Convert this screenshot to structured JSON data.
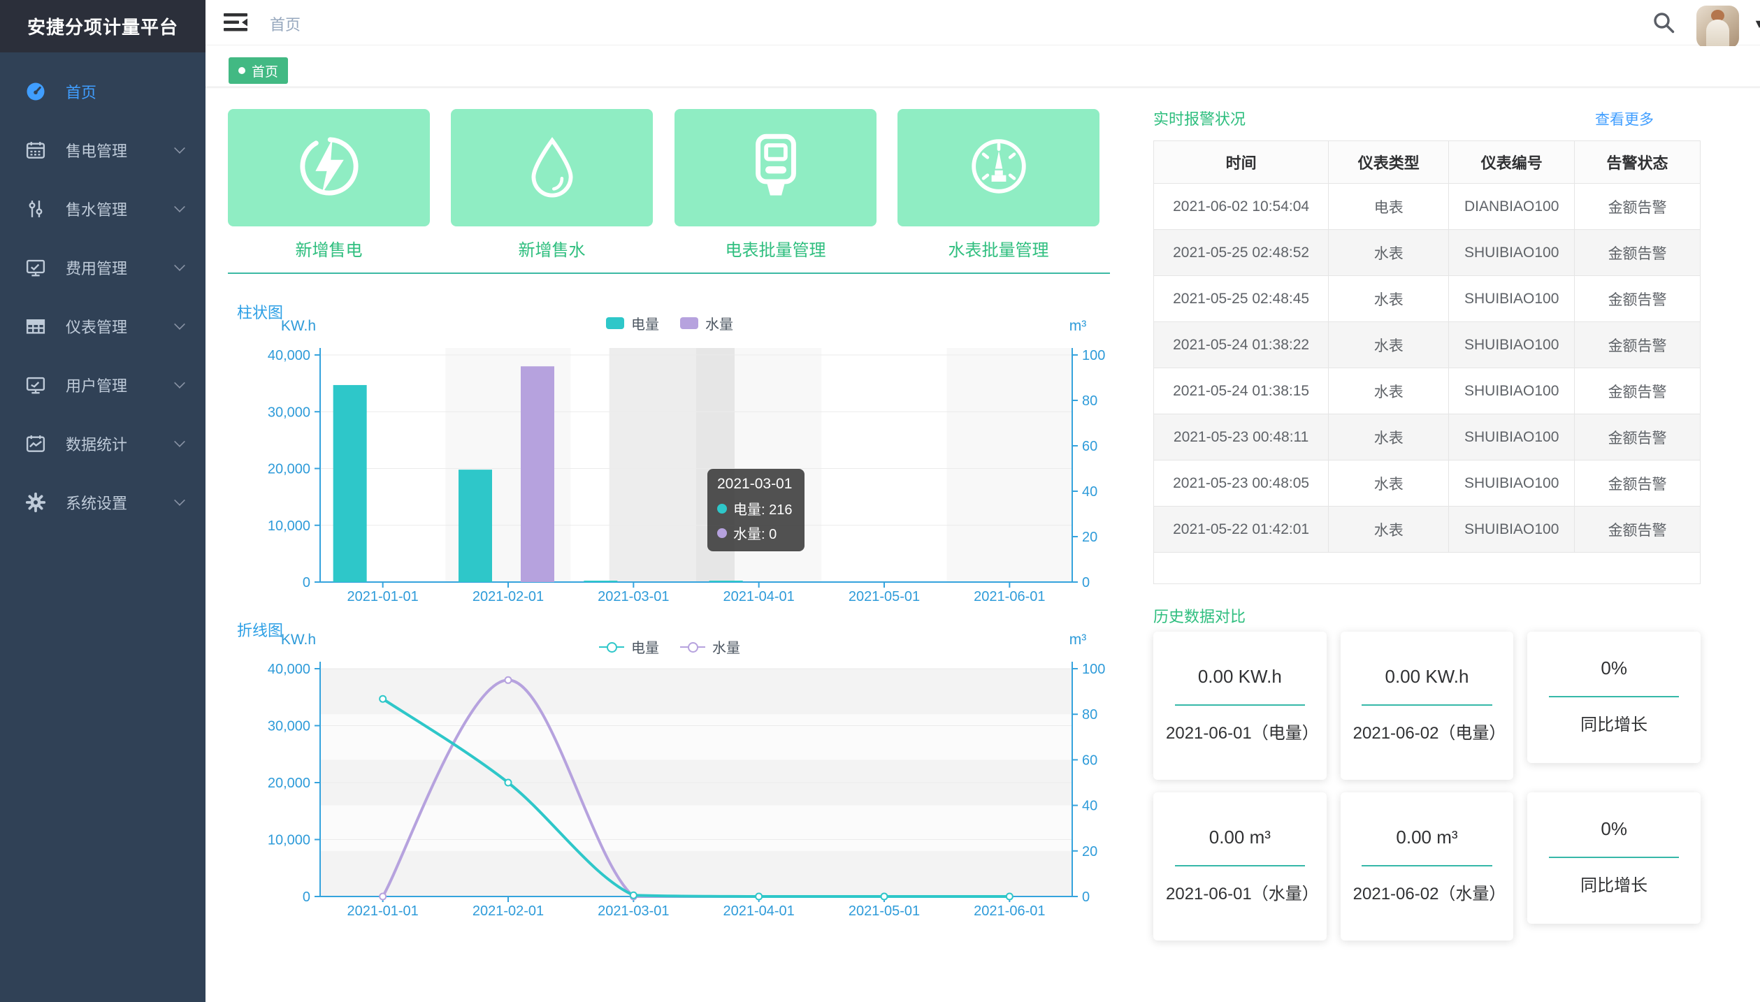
{
  "app_title": "安捷分项计量平台",
  "sidebar": {
    "logo_text": "安捷分项计量平台",
    "items": [
      {
        "label": "首页",
        "icon": "dashboard-icon",
        "active": true,
        "expandable": false
      },
      {
        "label": "售电管理",
        "icon": "electricity-sales-icon",
        "active": false,
        "expandable": true
      },
      {
        "label": "售水管理",
        "icon": "water-sales-icon",
        "active": false,
        "expandable": true
      },
      {
        "label": "费用管理",
        "icon": "fees-icon",
        "active": false,
        "expandable": true
      },
      {
        "label": "仪表管理",
        "icon": "meter-management-icon",
        "active": false,
        "expandable": true
      },
      {
        "label": "用户管理",
        "icon": "user-management-icon",
        "active": false,
        "expandable": true
      },
      {
        "label": "数据统计",
        "icon": "statistics-icon",
        "active": false,
        "expandable": true
      },
      {
        "label": "系统设置",
        "icon": "settings-icon",
        "active": false,
        "expandable": true
      }
    ]
  },
  "navbar": {
    "breadcrumb": "首页"
  },
  "tags": [
    {
      "label": "首页",
      "active": true
    }
  ],
  "quick_actions": [
    {
      "label": "新增售电",
      "icon": "lightning-icon"
    },
    {
      "label": "新增售水",
      "icon": "water-drop-icon"
    },
    {
      "label": "电表批量管理",
      "icon": "electric-meter-icon"
    },
    {
      "label": "水表批量管理",
      "icon": "water-meter-gauge-icon"
    }
  ],
  "colors": {
    "tag_green": "#42b983",
    "mint_card": "#8FEDC3",
    "green_text": "#2EBE7E",
    "series_teal": "#2ec7c9",
    "series_purple": "#b6a2de",
    "axis_blue": "#2E9BD9",
    "title_blue": "#2C9FE5",
    "link_blue": "#409EFF"
  },
  "chart_data": [
    {
      "type": "bar",
      "title": "柱状图",
      "categories": [
        "2021-01-01",
        "2021-02-01",
        "2021-03-01",
        "2021-04-01",
        "2021-05-01",
        "2021-06-01"
      ],
      "series": [
        {
          "name": "电量",
          "axis": "left",
          "color": "#2ec7c9",
          "values": [
            34700,
            19800,
            216,
            150,
            0,
            0
          ]
        },
        {
          "name": "水量",
          "axis": "right",
          "color": "#b6a2de",
          "values": [
            0,
            95,
            0,
            0,
            0,
            0
          ]
        }
      ],
      "y_left": {
        "label": "KW.h",
        "max": 40000,
        "ticks": [
          "0",
          "10,000",
          "20,000",
          "30,000",
          "40,000"
        ]
      },
      "y_right": {
        "label": "m³",
        "max": 100,
        "ticks": [
          "0",
          "20",
          "40",
          "60",
          "80",
          "100"
        ]
      },
      "legend_position": "top",
      "grid": true,
      "highlight_index": 2,
      "tooltip": {
        "title": "2021-03-01",
        "rows": [
          {
            "name": "电量",
            "value": "216",
            "color": "#2ec7c9"
          },
          {
            "name": "水量",
            "value": "0",
            "color": "#b6a2de"
          }
        ]
      }
    },
    {
      "type": "line",
      "title": "折线图",
      "smooth": true,
      "categories": [
        "2021-01-01",
        "2021-02-01",
        "2021-03-01",
        "2021-04-01",
        "2021-05-01",
        "2021-06-01"
      ],
      "series": [
        {
          "name": "电量",
          "axis": "left",
          "color": "#2ec7c9",
          "values": [
            34700,
            20000,
            216,
            0,
            0,
            0
          ]
        },
        {
          "name": "水量",
          "axis": "right",
          "color": "#b6a2de",
          "values": [
            0,
            95,
            0,
            0,
            0,
            0
          ]
        }
      ],
      "y_left": {
        "label": "KW.h",
        "max": 40000,
        "ticks": [
          "0",
          "10,000",
          "20,000",
          "30,000",
          "40,000"
        ]
      },
      "y_right": {
        "label": "m³",
        "max": 100,
        "ticks": [
          "0",
          "20",
          "40",
          "60",
          "80",
          "100"
        ]
      },
      "legend_position": "top",
      "grid": true
    }
  ],
  "alarm_panel": {
    "title": "实时报警状况",
    "more_link": "查看更多",
    "columns": [
      "时间",
      "仪表类型",
      "仪表编号",
      "告警状态"
    ],
    "rows": [
      [
        "2021-06-02 10:54:04",
        "电表",
        "DIANBIAO100",
        "金额告警"
      ],
      [
        "2021-05-25 02:48:52",
        "水表",
        "SHUIBIAO100",
        "金额告警"
      ],
      [
        "2021-05-25 02:48:45",
        "水表",
        "SHUIBIAO100",
        "金额告警"
      ],
      [
        "2021-05-24 01:38:22",
        "水表",
        "SHUIBIAO100",
        "金额告警"
      ],
      [
        "2021-05-24 01:38:15",
        "水表",
        "SHUIBIAO100",
        "金额告警"
      ],
      [
        "2021-05-23 00:48:11",
        "水表",
        "SHUIBIAO100",
        "金额告警"
      ],
      [
        "2021-05-23 00:48:05",
        "水表",
        "SHUIBIAO100",
        "金额告警"
      ],
      [
        "2021-05-22 01:42:01",
        "水表",
        "SHUIBIAO100",
        "金额告警"
      ]
    ]
  },
  "history_panel": {
    "title": "历史数据对比",
    "cards": [
      {
        "value": "0.00 KW.h",
        "label": "2021-06-01（电量）",
        "short": false
      },
      {
        "value": "0.00 KW.h",
        "label": "2021-06-02（电量）",
        "short": false
      },
      {
        "value": "0%",
        "label": "同比增长",
        "short": true
      },
      {
        "value": "0.00 m³",
        "label": "2021-06-01（水量）",
        "short": false
      },
      {
        "value": "0.00 m³",
        "label": "2021-06-02（水量）",
        "short": false
      },
      {
        "value": "0%",
        "label": "同比增长",
        "short": true
      }
    ]
  }
}
